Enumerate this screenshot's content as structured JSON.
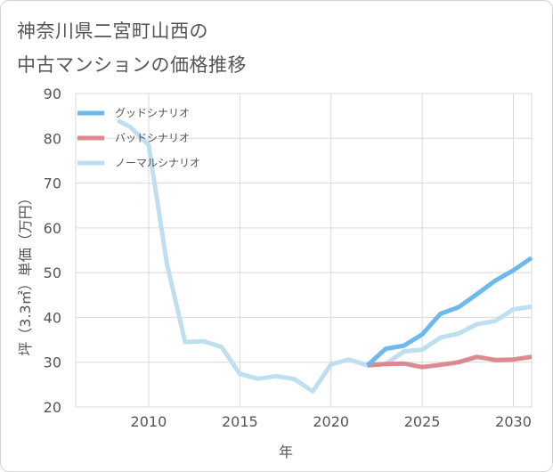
{
  "title_lines": [
    "神奈川県二宮町山西の",
    "中古マンションの価格推移"
  ],
  "colors": {
    "good": "#6cb9ec",
    "bad": "#db8a8f",
    "normal": "#bfdff0",
    "grid": "#d9d9d9"
  },
  "chart_data": {
    "type": "line",
    "title": "神奈川県二宮町山西の中古マンションの価格推移",
    "xlabel": "年",
    "ylabel": "坪（3.3㎡）単価（万円）",
    "xlim": [
      2006,
      2031
    ],
    "ylim": [
      20,
      90
    ],
    "x_ticks": [
      2010,
      2015,
      2020,
      2025,
      2030
    ],
    "y_ticks": [
      20,
      30,
      40,
      50,
      60,
      70,
      80,
      90
    ],
    "grid": true,
    "legend_position": "top-left",
    "series": [
      {
        "name": "グッドシナリオ",
        "color": "#6cb9ec",
        "points": [
          [
            2022,
            29.3
          ],
          [
            2023,
            33.0
          ],
          [
            2024,
            33.7
          ],
          [
            2025,
            36.2
          ],
          [
            2026,
            40.8
          ],
          [
            2027,
            42.3
          ],
          [
            2028,
            45.2
          ],
          [
            2029,
            48.2
          ],
          [
            2030,
            50.5
          ],
          [
            2031,
            53.3
          ]
        ]
      },
      {
        "name": "バッドシナリオ",
        "color": "#db8a8f",
        "points": [
          [
            2022,
            29.3
          ],
          [
            2023,
            29.6
          ],
          [
            2024,
            29.7
          ],
          [
            2025,
            28.9
          ],
          [
            2026,
            29.4
          ],
          [
            2027,
            30.0
          ],
          [
            2028,
            31.2
          ],
          [
            2029,
            30.5
          ],
          [
            2030,
            30.6
          ],
          [
            2031,
            31.2
          ]
        ]
      },
      {
        "name": "ノーマルシナリオ",
        "color": "#bfdff0",
        "points": [
          [
            2008.3,
            84.0
          ],
          [
            2009,
            82.5
          ],
          [
            2010,
            78.5
          ],
          [
            2011,
            52.0
          ],
          [
            2012,
            34.5
          ],
          [
            2013,
            34.7
          ],
          [
            2014,
            33.4
          ],
          [
            2015,
            27.4
          ],
          [
            2016,
            26.3
          ],
          [
            2017,
            26.9
          ],
          [
            2018,
            26.2
          ],
          [
            2019,
            23.5
          ],
          [
            2020,
            29.5
          ],
          [
            2021,
            30.6
          ],
          [
            2022,
            29.3
          ],
          [
            2023,
            29.6
          ],
          [
            2024,
            32.4
          ],
          [
            2025,
            32.8
          ],
          [
            2026,
            35.5
          ],
          [
            2027,
            36.4
          ],
          [
            2028,
            38.5
          ],
          [
            2029,
            39.2
          ],
          [
            2030,
            41.8
          ],
          [
            2031,
            42.4
          ]
        ]
      }
    ]
  }
}
